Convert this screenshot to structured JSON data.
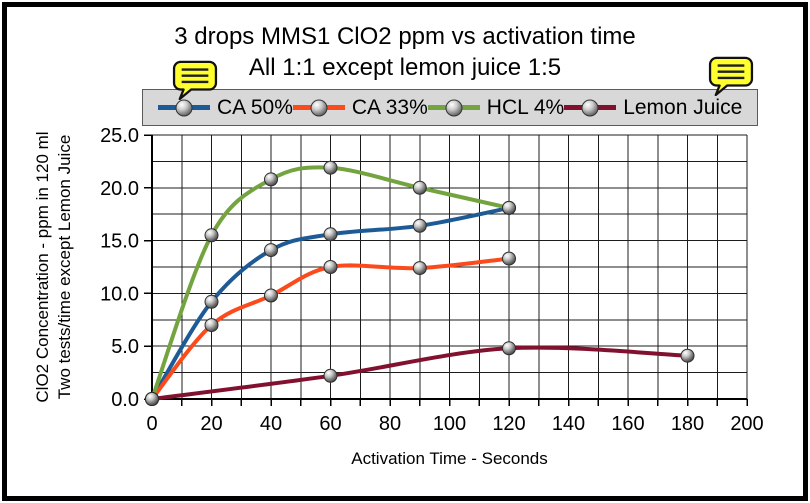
{
  "page": {
    "background": "#ffffff",
    "frame_border_color": "#000000"
  },
  "annotations": {
    "left_icon": "comment-bubble-icon",
    "right_icon": "comment-bubble-icon",
    "bubble_fill": "#ffff2e",
    "bubble_stroke": "#111111"
  },
  "legend_style": {
    "background": "#d8d8d8",
    "border": "#5a5a5a",
    "marker": "sphere-icon"
  },
  "chart_data": {
    "type": "line",
    "title": "3 drops MMS1 ClO2 ppm vs activation time",
    "subtitle": "All 1:1 except lemon juice 1:5",
    "xlabel": "Activation Time - Seconds",
    "ylabel": [
      "ClO2 Concentration - ppm in 120 ml",
      "Two tests/time except Lemon Juice"
    ],
    "xlim": [
      0,
      200
    ],
    "ylim": [
      0,
      25
    ],
    "x_major_ticks": [
      0,
      20,
      40,
      60,
      80,
      100,
      120,
      140,
      160,
      180,
      200
    ],
    "x_minor_step": 10,
    "y_major_ticks": [
      0,
      5,
      10,
      15,
      20,
      25
    ],
    "y_tick_labels": [
      "0.0",
      "5.0",
      "10.0",
      "15.0",
      "20.0",
      "25.0"
    ],
    "y_minor_step": 2.5,
    "grid": true,
    "grid_color": "#1c1c1c",
    "legend_position": "top",
    "line_style": "smooth",
    "marker_style": "gray-3d-sphere",
    "series": [
      {
        "name": "CA 50%",
        "color": "#1d5a96",
        "x": [
          0,
          20,
          40,
          60,
          90,
          120
        ],
        "y": [
          0.0,
          9.2,
          14.1,
          15.6,
          16.4,
          18.1
        ]
      },
      {
        "name": "CA 33%",
        "color": "#fb4a1c",
        "x": [
          0,
          20,
          40,
          60,
          90,
          120
        ],
        "y": [
          0.0,
          7.0,
          9.8,
          12.5,
          12.4,
          13.3
        ]
      },
      {
        "name": "HCL 4%",
        "color": "#74a43f",
        "x": [
          0,
          20,
          40,
          60,
          90,
          120
        ],
        "y": [
          0.0,
          15.5,
          20.8,
          21.9,
          20.0,
          18.1
        ]
      },
      {
        "name": "Lemon Juice",
        "color": "#82112f",
        "x": [
          0,
          60,
          120,
          180
        ],
        "y": [
          0.0,
          2.2,
          4.8,
          4.1
        ]
      }
    ]
  }
}
